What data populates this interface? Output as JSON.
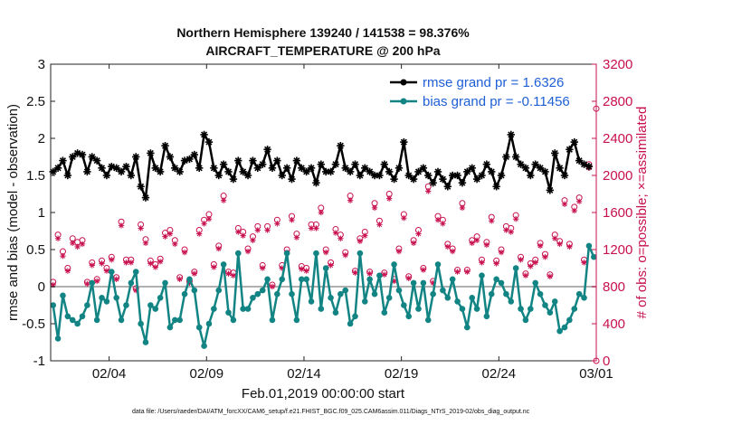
{
  "chart_data": {
    "type": "line",
    "title_line1": "Northern Hemisphere 139240 / 141538 = 98.376%",
    "title_line2": "AIRCRAFT_TEMPERATURE @ 200 hPa",
    "xlabel": "Feb.01,2019 00:00:00 start",
    "ylabel_left": "rmse and bias (model - observation)",
    "ylabel_right": "# of obs: o=possible; ×=assimilated",
    "xlim": [
      1.0,
      29.0
    ],
    "ylim_left": [
      -1,
      3
    ],
    "ylim_right": [
      0,
      3200
    ],
    "x_ticks": [
      {
        "value": 4,
        "label": "02/04"
      },
      {
        "value": 9,
        "label": "02/09"
      },
      {
        "value": 14,
        "label": "02/14"
      },
      {
        "value": 19,
        "label": "02/19"
      },
      {
        "value": 24,
        "label": "02/24"
      },
      {
        "value": 29,
        "label": "03/01"
      }
    ],
    "y_ticks_left": [
      {
        "value": -1,
        "label": "-1"
      },
      {
        "value": -0.5,
        "label": "-0.5"
      },
      {
        "value": 0,
        "label": "0"
      },
      {
        "value": 0.5,
        "label": "0.5"
      },
      {
        "value": 1,
        "label": "1"
      },
      {
        "value": 1.5,
        "label": "1.5"
      },
      {
        "value": 2,
        "label": "2"
      },
      {
        "value": 2.5,
        "label": "2.5"
      },
      {
        "value": 3,
        "label": "3"
      }
    ],
    "y_ticks_right": [
      {
        "value": 0,
        "label": "0"
      },
      {
        "value": 400,
        "label": "400"
      },
      {
        "value": 800,
        "label": "800"
      },
      {
        "value": 1200,
        "label": "1200"
      },
      {
        "value": 1600,
        "label": "1600"
      },
      {
        "value": 2000,
        "label": "2000"
      },
      {
        "value": 2400,
        "label": "2400"
      },
      {
        "value": 2800,
        "label": "2800"
      },
      {
        "value": 3200,
        "label": "3200"
      }
    ],
    "legend_position": "top-right",
    "x_start": 1.125,
    "x_step": 0.25,
    "series": [
      {
        "name": "rmse grand pr = 1.6326",
        "axis": "left",
        "color": "#000000",
        "marker": "star",
        "values": [
          1.55,
          1.6,
          1.7,
          1.5,
          1.75,
          1.8,
          1.78,
          1.55,
          1.75,
          1.7,
          1.6,
          1.5,
          1.62,
          1.6,
          1.55,
          1.62,
          1.5,
          1.75,
          1.35,
          1.2,
          1.8,
          1.6,
          1.55,
          1.9,
          1.75,
          1.6,
          1.55,
          1.7,
          1.72,
          1.78,
          1.6,
          2.05,
          1.95,
          1.6,
          1.5,
          1.65,
          1.55,
          1.45,
          1.7,
          1.55,
          1.5,
          1.7,
          1.6,
          1.65,
          1.85,
          1.6,
          1.7,
          1.5,
          1.6,
          1.45,
          1.7,
          1.6,
          1.55,
          1.6,
          1.4,
          1.65,
          1.55,
          1.55,
          1.65,
          1.9,
          1.6,
          1.55,
          1.65,
          1.5,
          1.6,
          1.55,
          1.5,
          1.5,
          1.65,
          1.55,
          1.45,
          1.6,
          1.95,
          1.5,
          1.45,
          1.55,
          1.6,
          1.5,
          1.4,
          1.55,
          1.45,
          1.35,
          1.5,
          1.5,
          1.4,
          1.55,
          1.6,
          1.45,
          1.5,
          1.65,
          1.55,
          1.35,
          1.5,
          1.75,
          2.05,
          1.75,
          1.65,
          1.6,
          1.5,
          1.65,
          1.6,
          1.55,
          1.3,
          1.8,
          1.6,
          1.5,
          1.85,
          1.95,
          1.7,
          1.65,
          1.62
        ]
      },
      {
        "name": "bias grand pr = -0.11456",
        "axis": "left",
        "color": "#138484",
        "marker": "dot",
        "values": [
          -0.25,
          -0.7,
          -0.12,
          -0.4,
          -0.45,
          -0.5,
          -0.4,
          -0.25,
          0.05,
          -0.45,
          -0.15,
          -0.2,
          0.2,
          -0.15,
          -0.45,
          -0.25,
          0.05,
          0.2,
          -0.5,
          -0.75,
          -0.25,
          -0.3,
          -0.15,
          0.05,
          -0.55,
          -0.45,
          -0.45,
          -0.1,
          0.1,
          -0.05,
          -0.55,
          -0.8,
          -0.5,
          -0.3,
          -0.05,
          0.3,
          -0.35,
          -0.45,
          0.45,
          -0.3,
          -0.3,
          -0.15,
          -0.1,
          -0.05,
          0.1,
          -0.45,
          -0.1,
          0.1,
          0.45,
          -0.1,
          -0.45,
          0.1,
          0.1,
          -0.2,
          0.45,
          -0.3,
          0.25,
          -0.15,
          -0.35,
          -0.1,
          -0.05,
          -0.5,
          -0.4,
          0.45,
          -0.2,
          0.1,
          -0.1,
          0.15,
          -0.35,
          -0.15,
          0.3,
          -0.05,
          -0.25,
          -0.4,
          0.05,
          -0.3,
          0.05,
          -0.45,
          -0.1,
          0.3,
          -0.05,
          -0.15,
          0.1,
          -0.2,
          -0.3,
          -0.55,
          -0.15,
          -0.3,
          0.15,
          -0.4,
          -0.1,
          0.1,
          0.05,
          -0.1,
          -0.2,
          0.25,
          -0.3,
          -0.45,
          -0.3,
          0.05,
          -0.1,
          -0.25,
          -0.35,
          -0.2,
          -0.6,
          -0.55,
          -0.45,
          -0.3,
          -0.1,
          -0.15,
          0.55,
          0.4
        ]
      },
      {
        "name": "# obs possible",
        "axis": "right",
        "color": "#c8104f",
        "marker": "circle",
        "values": [
          850,
          1360,
          1180,
          1000,
          1320,
          1280,
          1300,
          850,
          1060,
          880,
          1080,
          1000,
          1120,
          900,
          1500,
          1090,
          1090,
          780,
          1470,
          1310,
          1080,
          1040,
          1100,
          1380,
          1410,
          1300,
          900,
          1200,
          860,
          960,
          1410,
          1520,
          1580,
          1040,
          1240,
          1780,
          960,
          950,
          1430,
          1390,
          1210,
          1340,
          1450,
          1030,
          1450,
          820,
          1520,
          1030,
          1200,
          1560,
          1370,
          1020,
          1000,
          1470,
          1470,
          1650,
          1200,
          1060,
          1420,
          1360,
          1170,
          1780,
          970,
          1320,
          1390,
          960,
          1700,
          1510,
          950,
          1800,
          880,
          1210,
          1580,
          910,
          1300,
          1410,
          1000,
          1880,
          860,
          1560,
          1520,
          1260,
          1210,
          980,
          1700,
          980,
          1300,
          1340,
          1090,
          1280,
          1550,
          1080,
          1200,
          1450,
          1430,
          1570,
          1120,
          940,
          1050,
          1090,
          1270,
          1150,
          930,
          1360,
          1290,
          1730,
          1260,
          1660,
          1760,
          1090,
          2120
        ]
      },
      {
        "name": "# obs assimilated",
        "axis": "right",
        "color": "#c8104f",
        "marker": "star",
        "values": [
          820,
          1320,
          1130,
          970,
          1270,
          1230,
          1260,
          830,
          1030,
          860,
          1050,
          970,
          1090,
          880,
          1460,
          1060,
          1060,
          760,
          1430,
          1270,
          1050,
          1010,
          1070,
          1340,
          1370,
          1260,
          880,
          1170,
          840,
          940,
          1370,
          1480,
          1530,
          1010,
          1210,
          1730,
          940,
          920,
          1390,
          1350,
          1180,
          1300,
          1410,
          1000,
          1410,
          800,
          1480,
          1000,
          1170,
          1520,
          1330,
          990,
          970,
          1430,
          1430,
          1600,
          1170,
          1030,
          1380,
          1320,
          1140,
          1730,
          950,
          1290,
          1350,
          940,
          1650,
          1470,
          930,
          1750,
          860,
          1180,
          1540,
          890,
          1270,
          1370,
          980,
          1830,
          840,
          1520,
          1480,
          1230,
          1180,
          960,
          1650,
          960,
          1270,
          1300,
          1060,
          1250,
          1510,
          1050,
          1170,
          1410,
          1390,
          1530,
          1090,
          920,
          1020,
          1060,
          1240,
          1120,
          910,
          1320,
          1260,
          1690,
          1230,
          1620,
          1720,
          1060,
          2080
        ]
      }
    ],
    "extra_points": [
      {
        "series": "# obs possible",
        "x": 29.0,
        "value": 2720
      },
      {
        "series": "# obs possible",
        "x": 29.0,
        "value": 0
      }
    ]
  },
  "footer": "data file: /Users/raeder/DAI/ATM_forcXX/CAM6_setup/f.e21.FHIST_BGC.f09_025.CAM6assim.011/Diags_NTrS_2019-02/obs_diag_output.nc"
}
